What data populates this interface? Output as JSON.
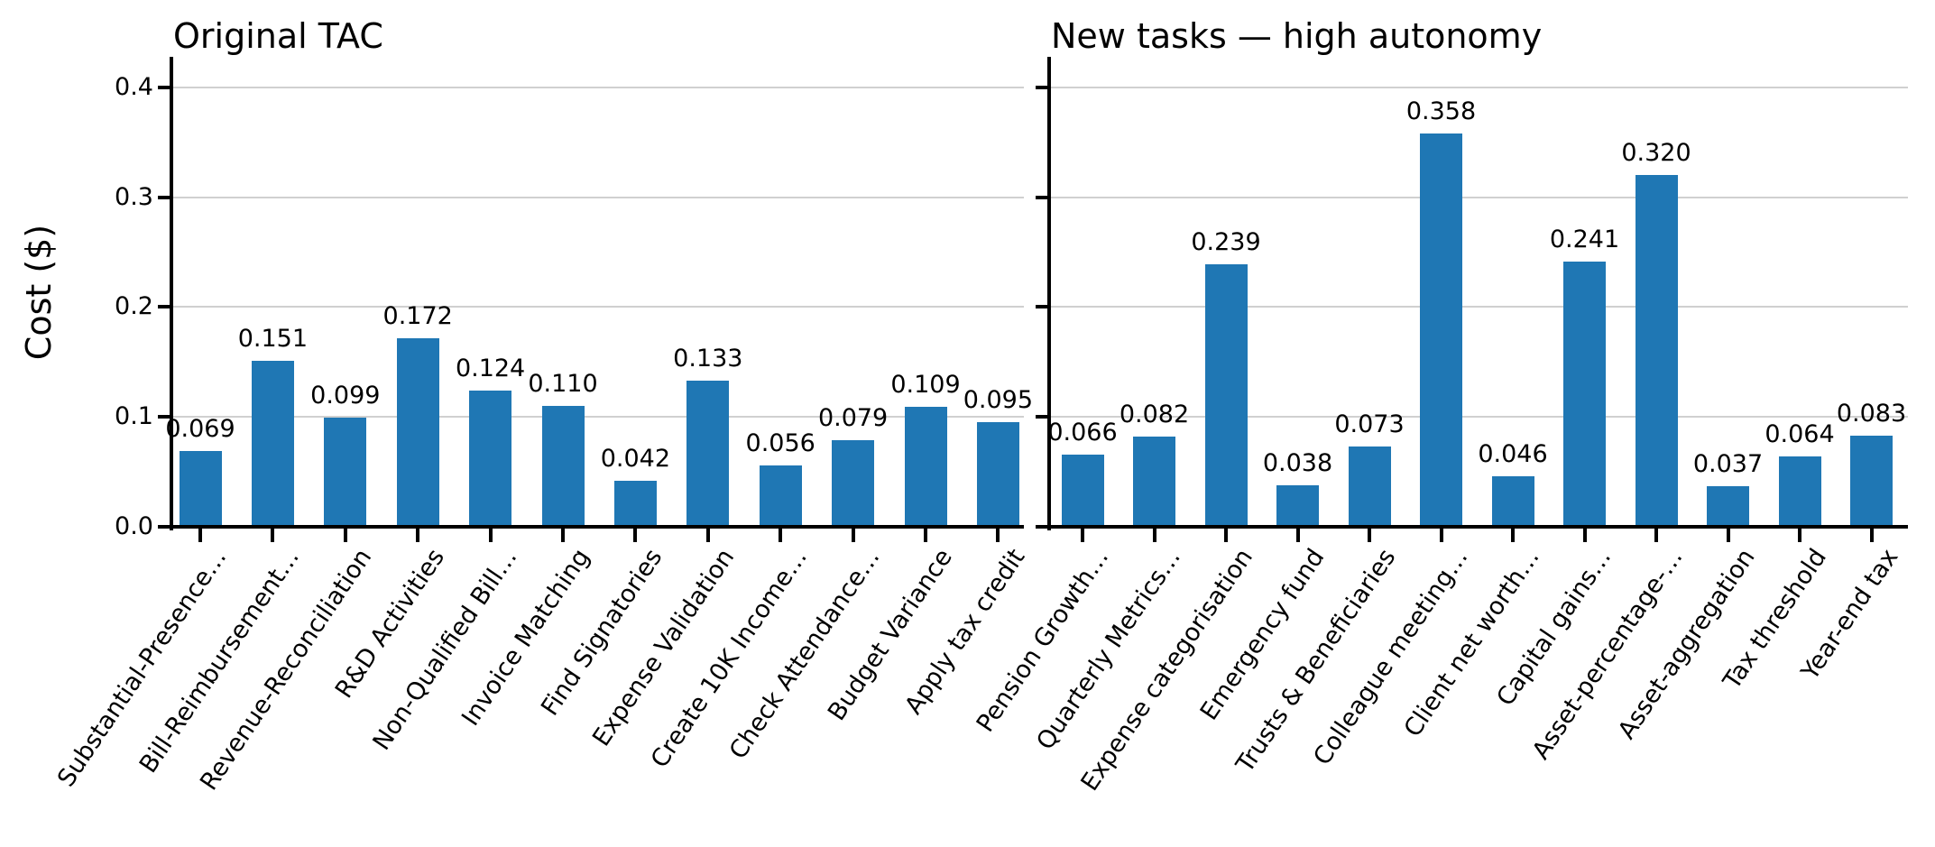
{
  "colors": {
    "bar": "#1f77b4",
    "grid": "#d0d0d0",
    "axis": "#000000",
    "background": "#ffffff"
  },
  "y_axis": {
    "label": "Cost ($)",
    "tick_labels": [
      "0.0",
      "0.1",
      "0.2",
      "0.3",
      "0.4"
    ],
    "tick_values": [
      0,
      0.1,
      0.2,
      0.3,
      0.4
    ]
  },
  "chart_data": [
    {
      "type": "bar",
      "title": "Original TAC",
      "ylabel": "Cost ($)",
      "xlabel": "",
      "ylim": [
        0,
        0.43
      ],
      "yticks": [
        0,
        0.1,
        0.2,
        0.3,
        0.4
      ],
      "grid": true,
      "legend": false,
      "bar_color": "#1f77b4",
      "categories": [
        "Substantial-Presence…",
        "Bill-Reimbursement…",
        "Revenue-Reconciliation",
        "R&D Activities",
        "Non-Qualified Bill…",
        "Invoice Matching",
        "Find Signatories",
        "Expense Validation",
        "Create 10K Income…",
        "Check Attendance…",
        "Budget Variance",
        "Apply tax credit"
      ],
      "values": [
        0.069,
        0.151,
        0.099,
        0.172,
        0.124,
        0.11,
        0.042,
        0.133,
        0.056,
        0.079,
        0.109,
        0.095
      ],
      "value_labels": [
        "0.069",
        "0.151",
        "0.099",
        "0.172",
        "0.124",
        "0.110",
        "0.042",
        "0.133",
        "0.056",
        "0.079",
        "0.109",
        "0.095"
      ]
    },
    {
      "type": "bar",
      "title": "New tasks — high autonomy",
      "ylabel": "",
      "xlabel": "",
      "ylim": [
        0,
        0.43
      ],
      "yticks": [
        0,
        0.1,
        0.2,
        0.3,
        0.4
      ],
      "grid": true,
      "legend": false,
      "bar_color": "#1f77b4",
      "categories": [
        "Pension Growth…",
        "Quarterly Metrics…",
        "Expense categorisation",
        "Emergency fund",
        "Trusts & Beneficiaries",
        "Colleague meeting…",
        "Client net worth…",
        "Capital gains…",
        "Asset-percentage-…",
        "Asset-aggregation",
        "Tax threshold",
        "Year-end tax"
      ],
      "values": [
        0.066,
        0.082,
        0.239,
        0.038,
        0.073,
        0.358,
        0.046,
        0.241,
        0.32,
        0.037,
        0.064,
        0.083
      ],
      "value_labels": [
        "0.066",
        "0.082",
        "0.239",
        "0.038",
        "0.073",
        "0.358",
        "0.046",
        "0.241",
        "0.320",
        "0.037",
        "0.064",
        "0.083"
      ]
    }
  ]
}
